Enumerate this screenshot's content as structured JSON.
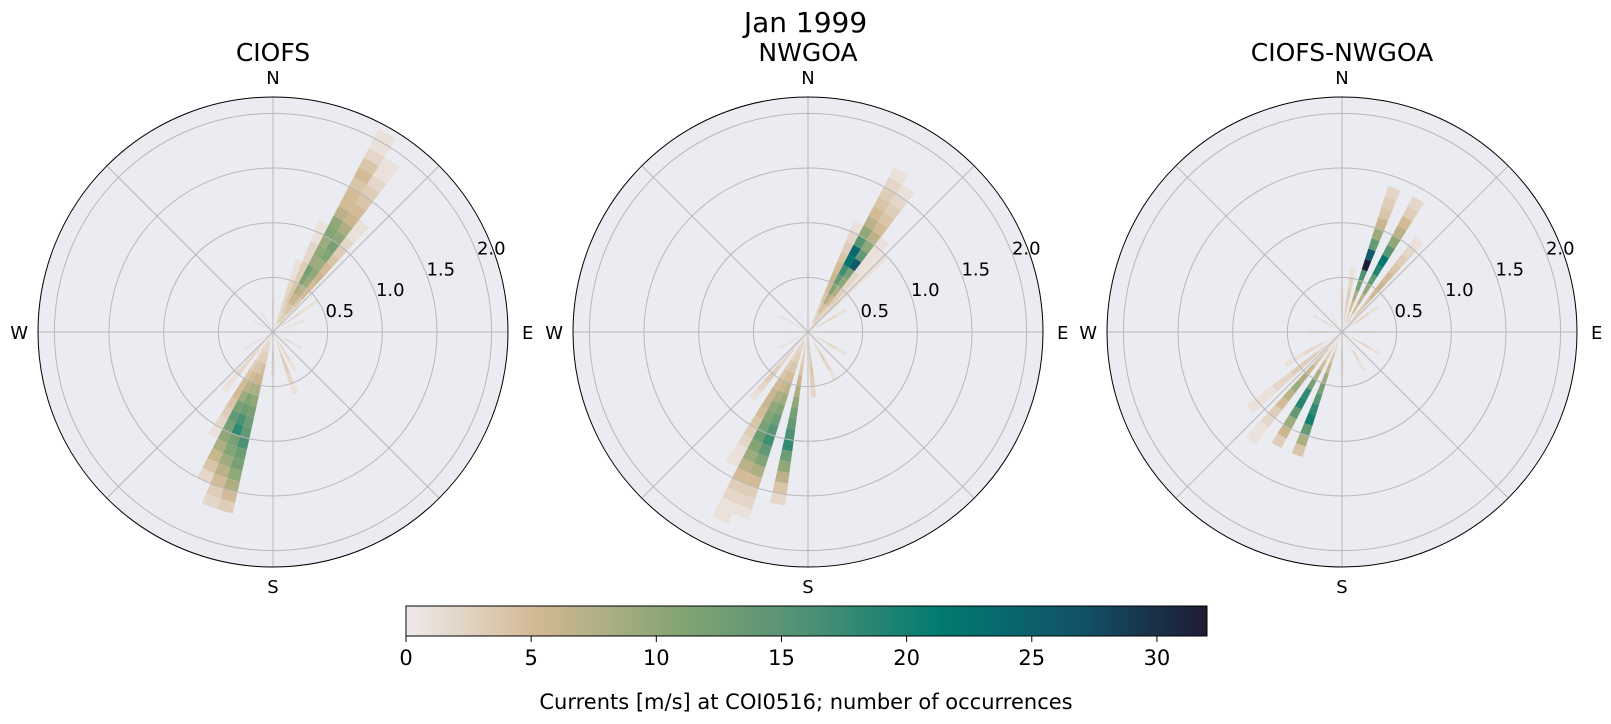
{
  "figure": {
    "title": "Jan 1999"
  },
  "colorbar": {
    "label": "Currents [m/s] at COI0516; number of occurrences",
    "ticks": [
      "0",
      "5",
      "10",
      "15",
      "20",
      "25",
      "30"
    ],
    "min": 0,
    "max": 32,
    "colormap": [
      "#eeeaea",
      "#d2b892",
      "#87a574",
      "#4e9174",
      "#007b6f",
      "#11546a",
      "#1e1b34"
    ]
  },
  "polar_axes": {
    "direction_labels": [
      "N",
      "E",
      "S",
      "W"
    ],
    "ring_labels": [
      "0.5",
      "1.0",
      "1.5",
      "2.0"
    ],
    "rmax": 2.15,
    "background": "#ebebf2",
    "grid_color": "#b8b8b8"
  },
  "chart_data": [
    {
      "type": "heatmap",
      "subtitle": "CIOFS",
      "sectors": [
        {
          "dir": 30,
          "counts": [
            1,
            3,
            4,
            6,
            8,
            11,
            12,
            9,
            10,
            9,
            11,
            10,
            7,
            5,
            5,
            4,
            5,
            4,
            2,
            1,
            1
          ]
        },
        {
          "dir": 35,
          "counts": [
            1,
            3,
            4,
            6,
            7,
            9,
            10,
            9,
            11,
            12,
            10,
            8,
            6,
            5,
            4,
            3,
            2,
            1,
            1
          ]
        },
        {
          "dir": 40,
          "counts": [
            1,
            2,
            3,
            4,
            5,
            5,
            6,
            5,
            4,
            3,
            2,
            1,
            1
          ]
        },
        {
          "dir": 25,
          "counts": [
            1,
            2,
            3,
            4,
            4,
            3,
            3,
            2,
            2,
            1,
            1
          ]
        },
        {
          "dir": 20,
          "counts": [
            1,
            2,
            2,
            2,
            2,
            1,
            1
          ]
        },
        {
          "dir": 55,
          "counts": [
            1,
            2,
            2,
            1,
            1
          ]
        },
        {
          "dir": 70,
          "counts": [
            1,
            1,
            1
          ]
        },
        {
          "dir": 0,
          "counts": [
            1,
            2,
            1
          ]
        },
        {
          "dir": 90,
          "counts": [
            1,
            1
          ]
        },
        {
          "dir": 120,
          "counts": [
            1,
            2,
            1
          ]
        },
        {
          "dir": 150,
          "counts": [
            1,
            2,
            2,
            1
          ]
        },
        {
          "dir": 160,
          "counts": [
            1,
            2,
            3,
            3,
            2,
            1
          ]
        },
        {
          "dir": 180,
          "counts": [
            1,
            2,
            2,
            1
          ]
        },
        {
          "dir": 195,
          "counts": [
            1,
            2,
            3,
            5,
            6,
            8,
            10,
            12,
            13,
            14,
            16,
            13,
            12,
            10,
            8,
            5,
            3
          ]
        },
        {
          "dir": 200,
          "counts": [
            1,
            2,
            3,
            4,
            6,
            8,
            11,
            13,
            16,
            18,
            12,
            11,
            9,
            7,
            5,
            3,
            2
          ]
        },
        {
          "dir": 205,
          "counts": [
            1,
            2,
            3,
            4,
            5,
            7,
            9,
            12,
            14,
            12,
            10,
            8,
            6,
            4,
            2
          ]
        },
        {
          "dir": 210,
          "counts": [
            1,
            2,
            2,
            3,
            4,
            5,
            5,
            4,
            3,
            2,
            1
          ]
        },
        {
          "dir": 220,
          "counts": [
            1,
            1,
            2,
            2,
            2,
            1,
            1
          ]
        },
        {
          "dir": 240,
          "counts": [
            1,
            1,
            1
          ]
        },
        {
          "dir": 270,
          "counts": [
            1,
            1
          ]
        },
        {
          "dir": 300,
          "counts": [
            1,
            1
          ]
        },
        {
          "dir": 330,
          "counts": [
            1,
            1
          ]
        }
      ]
    },
    {
      "type": "heatmap",
      "subtitle": "NWGOA",
      "sectors": [
        {
          "dir": 30,
          "counts": [
            1,
            3,
            5,
            8,
            11,
            14,
            17,
            22,
            24,
            15,
            10,
            7,
            5,
            4,
            3,
            2,
            1
          ]
        },
        {
          "dir": 35,
          "counts": [
            1,
            3,
            4,
            6,
            8,
            10,
            12,
            26,
            14,
            10,
            7,
            5,
            4,
            3,
            2,
            1
          ]
        },
        {
          "dir": 25,
          "counts": [
            1,
            2,
            3,
            4,
            5,
            6,
            5,
            4,
            3,
            2,
            1
          ]
        },
        {
          "dir": 40,
          "counts": [
            1,
            2,
            2,
            3,
            3,
            2,
            2,
            1,
            1,
            1,
            1
          ]
        },
        {
          "dir": 45,
          "counts": [
            1,
            1,
            2,
            2,
            1,
            1,
            1,
            1,
            1,
            1
          ]
        },
        {
          "dir": 60,
          "counts": [
            1,
            2,
            2,
            1
          ]
        },
        {
          "dir": 90,
          "counts": [
            1,
            1,
            1
          ]
        },
        {
          "dir": 120,
          "counts": [
            1,
            2,
            2,
            1
          ]
        },
        {
          "dir": 150,
          "counts": [
            1,
            2,
            3,
            2,
            1
          ]
        },
        {
          "dir": 175,
          "counts": [
            1,
            2,
            3,
            4,
            3,
            2
          ]
        },
        {
          "dir": 190,
          "counts": [
            1,
            2,
            3,
            4,
            6,
            8,
            10,
            12,
            14,
            16,
            18,
            13,
            10,
            7,
            4,
            2
          ]
        },
        {
          "dir": 200,
          "counts": [
            1,
            2,
            3,
            4,
            5,
            7,
            9,
            11,
            13,
            15,
            17,
            14,
            11,
            8,
            5,
            3,
            2,
            1
          ]
        },
        {
          "dir": 205,
          "counts": [
            1,
            2,
            3,
            4,
            5,
            6,
            8,
            10,
            11,
            12,
            13,
            11,
            9,
            7,
            5,
            3,
            2,
            1,
            1
          ]
        },
        {
          "dir": 210,
          "counts": [
            1,
            2,
            2,
            3,
            4,
            5,
            6,
            6,
            5,
            4,
            3,
            2,
            1,
            1
          ]
        },
        {
          "dir": 220,
          "counts": [
            1,
            1,
            2,
            2,
            3,
            3,
            2,
            1
          ]
        },
        {
          "dir": 240,
          "counts": [
            1,
            1,
            1
          ]
        },
        {
          "dir": 270,
          "counts": [
            1,
            1
          ]
        },
        {
          "dir": 300,
          "counts": [
            1,
            1,
            1
          ]
        },
        {
          "dir": 330,
          "counts": [
            1,
            1
          ]
        }
      ]
    },
    {
      "type": "heatmap",
      "subtitle": "CIOFS-NWGOA",
      "sectors": [
        {
          "dir": 20,
          "counts": [
            1,
            3,
            5,
            8,
            12,
            16,
            32,
            26,
            14,
            9,
            6,
            4,
            3,
            2
          ]
        },
        {
          "dir": 30,
          "counts": [
            1,
            3,
            5,
            7,
            10,
            14,
            19,
            22,
            15,
            10,
            7,
            5,
            3,
            2
          ]
        },
        {
          "dir": 40,
          "counts": [
            1,
            2,
            3,
            4,
            5,
            6,
            5,
            4,
            3,
            2,
            1
          ]
        },
        {
          "dir": 10,
          "counts": [
            1,
            2,
            3,
            3,
            2,
            1
          ]
        },
        {
          "dir": 0,
          "counts": [
            1,
            2,
            2,
            1
          ]
        },
        {
          "dir": 55,
          "counts": [
            1,
            2,
            2,
            1
          ]
        },
        {
          "dir": 90,
          "counts": [
            1,
            2,
            1
          ]
        },
        {
          "dir": 120,
          "counts": [
            1,
            2,
            2,
            1
          ]
        },
        {
          "dir": 150,
          "counts": [
            1,
            1,
            2,
            1
          ]
        },
        {
          "dir": 180,
          "counts": [
            1,
            2,
            2,
            1
          ]
        },
        {
          "dir": 200,
          "counts": [
            1,
            2,
            4,
            6,
            9,
            12,
            15,
            18,
            20,
            14,
            8,
            4
          ]
        },
        {
          "dir": 210,
          "counts": [
            1,
            2,
            3,
            5,
            8,
            12,
            18,
            19,
            14,
            9,
            6,
            3
          ]
        },
        {
          "dir": 220,
          "counts": [
            1,
            2,
            3,
            4,
            6,
            8,
            9,
            7,
            5,
            3,
            2,
            1,
            1
          ]
        },
        {
          "dir": 230,
          "counts": [
            1,
            1,
            2,
            3,
            3,
            3,
            2,
            2,
            1,
            1,
            1
          ]
        },
        {
          "dir": 240,
          "counts": [
            1,
            1,
            2,
            2,
            1,
            1
          ]
        },
        {
          "dir": 270,
          "counts": [
            1,
            2,
            1
          ]
        },
        {
          "dir": 300,
          "counts": [
            1,
            2,
            1
          ]
        },
        {
          "dir": 330,
          "counts": [
            1,
            1
          ]
        }
      ]
    }
  ]
}
